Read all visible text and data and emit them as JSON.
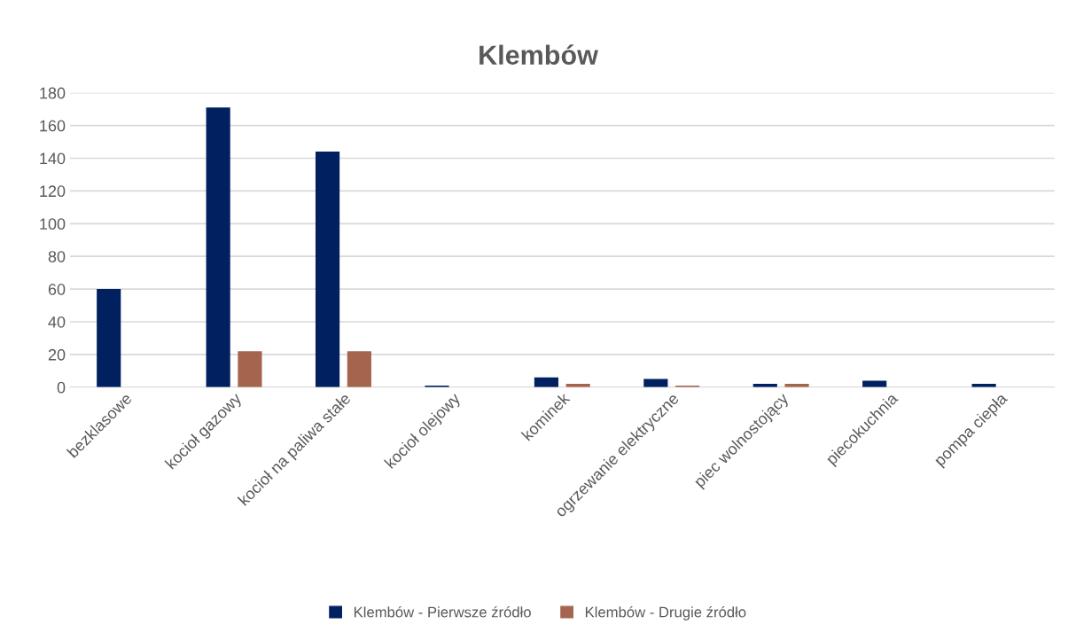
{
  "chart_data": {
    "type": "bar",
    "title": "Klembów",
    "categories": [
      "bezklasowe",
      "kocioł gazowy",
      "kocioł na paliwa stałe",
      "kocioł olejowy",
      "kominek",
      "ogrzewanie elektryczne",
      "piec wolnostojący",
      "piecokuchnia",
      "pompa ciepła"
    ],
    "series": [
      {
        "name": "Klembów - Pierwsze źródło",
        "color": "#002060",
        "values": [
          60,
          171,
          144,
          1,
          6,
          5,
          2,
          4,
          2
        ]
      },
      {
        "name": "Klembów - Drugie źródło",
        "color": "#a5644e",
        "values": [
          null,
          22,
          22,
          null,
          2,
          1,
          2,
          null,
          null
        ]
      }
    ],
    "ylim": [
      0,
      180
    ],
    "yticks": [
      0,
      20,
      40,
      60,
      80,
      100,
      120,
      140,
      160,
      180
    ],
    "grid": "y",
    "legend": "bottom"
  }
}
